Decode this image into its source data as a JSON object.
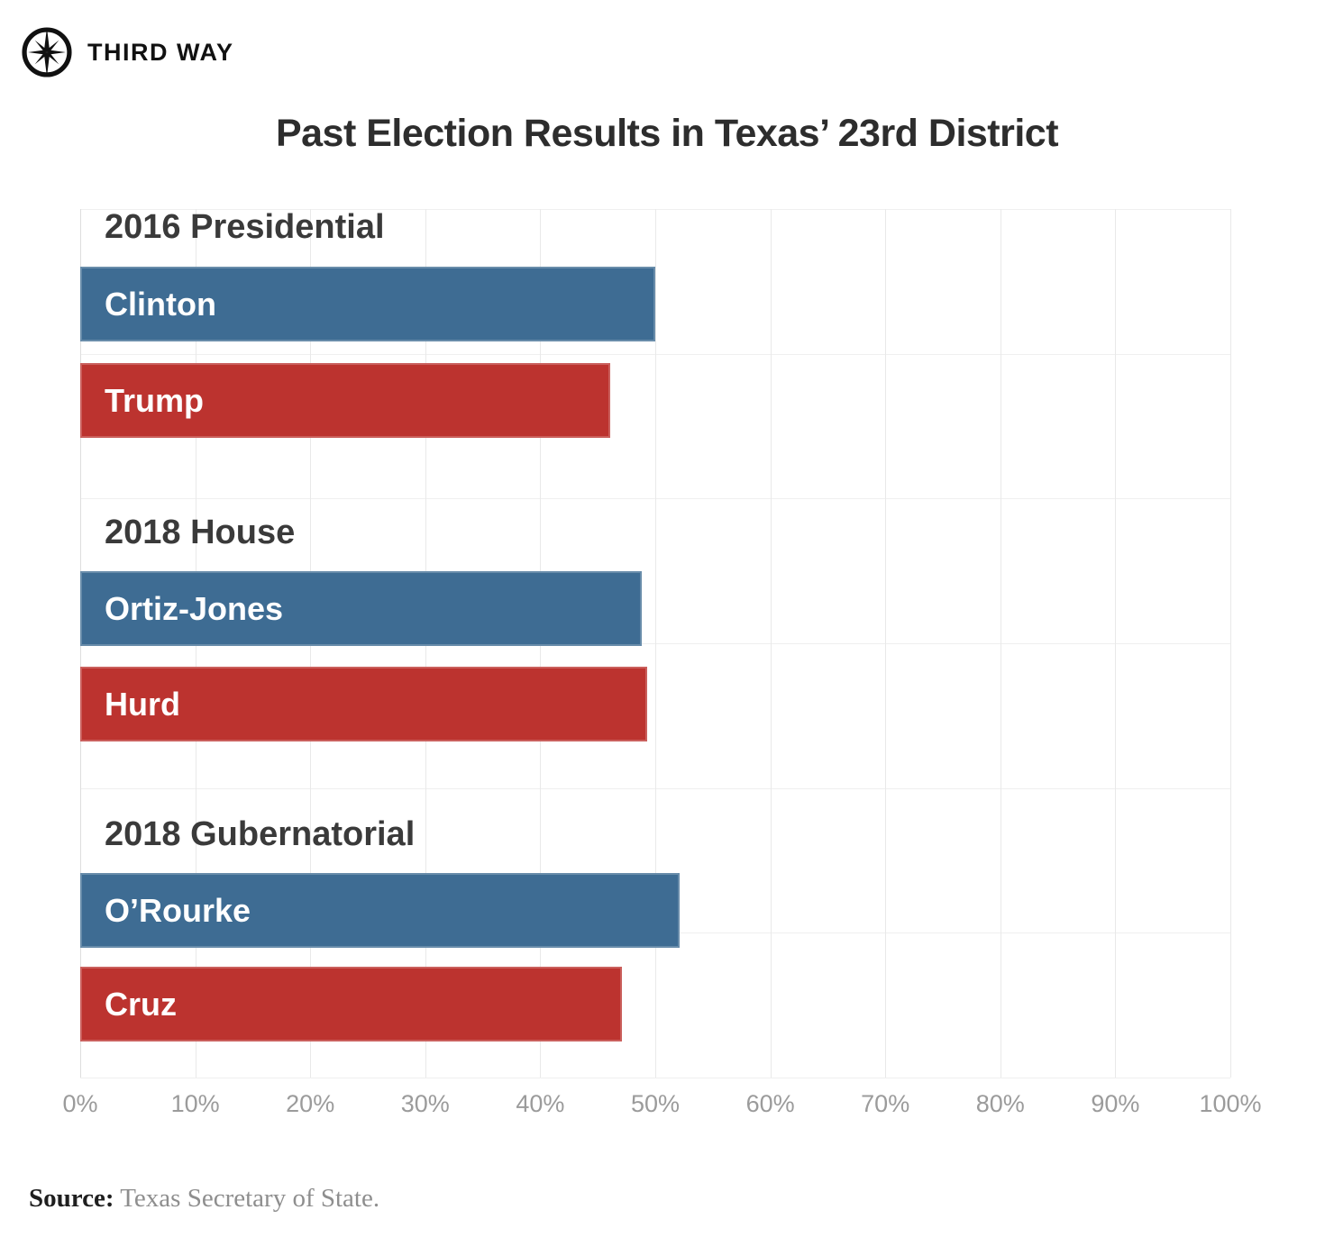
{
  "brand": {
    "name": "THIRD WAY",
    "logo_icon": "compass-icon",
    "accent_color": "#FBA21F"
  },
  "title": "Past Election Results in Texas’ 23rd District",
  "source": {
    "label": "Source:",
    "text": " Texas Secretary of State."
  },
  "chart_data": {
    "type": "bar",
    "orientation": "horizontal",
    "title": "Past Election Results in Texas’ 23rd District",
    "xlabel": "",
    "ylabel": "",
    "xlim": [
      0,
      100
    ],
    "grid": true,
    "x_ticks": [
      {
        "label": "0%",
        "value": 0
      },
      {
        "label": "10%",
        "value": 10
      },
      {
        "label": "20%",
        "value": 20
      },
      {
        "label": "30%",
        "value": 30
      },
      {
        "label": "40%",
        "value": 40
      },
      {
        "label": "50%",
        "value": 50
      },
      {
        "label": "60%",
        "value": 60
      },
      {
        "label": "70%",
        "value": 70
      },
      {
        "label": "80%",
        "value": 80
      },
      {
        "label": "90%",
        "value": 90
      },
      {
        "label": "100%",
        "value": 100
      }
    ],
    "colors": {
      "democrat": "#3E6C93",
      "republican": "#BC332F"
    },
    "groups": [
      {
        "label": "2016 Presidential",
        "bars": [
          {
            "name": "Clinton",
            "value": 50.0,
            "color": "#3E6C93"
          },
          {
            "name": "Trump",
            "value": 46.1,
            "color": "#BC332F"
          }
        ]
      },
      {
        "label": "2018 House",
        "bars": [
          {
            "name": "Ortiz-Jones",
            "value": 48.8,
            "color": "#3E6C93"
          },
          {
            "name": "Hurd",
            "value": 49.3,
            "color": "#BC332F"
          }
        ]
      },
      {
        "label": "2018 Gubernatorial",
        "bars": [
          {
            "name": "O’Rourke",
            "value": 52.1,
            "color": "#3E6C93"
          },
          {
            "name": "Cruz",
            "value": 47.1,
            "color": "#BC332F"
          }
        ]
      }
    ]
  }
}
